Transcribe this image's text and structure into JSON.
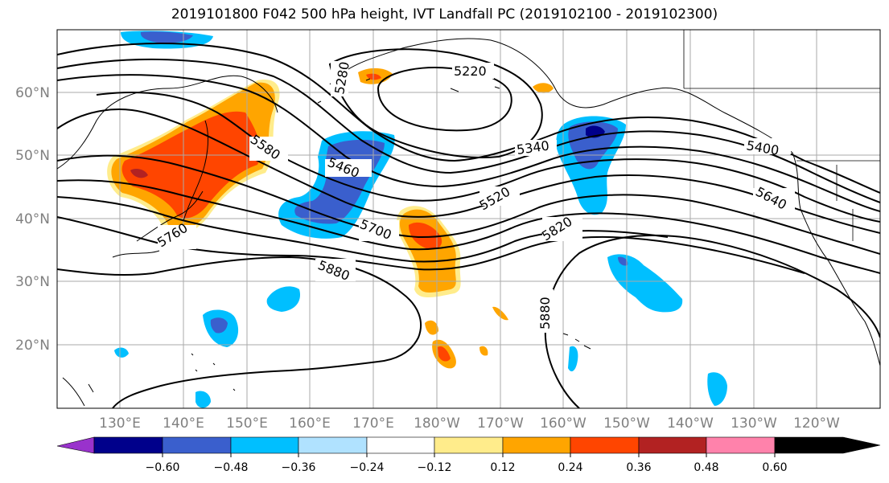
{
  "title": "2019101800 F042 500 hPa height, IVT Landfall PC (2019102100 - 2019102300)",
  "lat_labels": [
    "60°N",
    "50°N",
    "40°N",
    "30°N",
    "20°N"
  ],
  "lon_labels": [
    "130°E",
    "140°E",
    "150°E",
    "160°E",
    "170°E",
    "180°W",
    "170°W",
    "160°W",
    "150°W",
    "140°W",
    "130°W",
    "120°W"
  ],
  "contour_labels": [
    "5220",
    "5280",
    "5340",
    "5400",
    "5460",
    "5520",
    "5580",
    "5640",
    "5700",
    "5760",
    "5820",
    "5880",
    "5880"
  ],
  "colorbar": {
    "ticks": [
      "−0.60",
      "−0.48",
      "−0.36",
      "−0.24",
      "−0.12",
      "0.12",
      "0.24",
      "0.36",
      "0.48",
      "0.60"
    ],
    "colors": [
      "#9932cc",
      "#00008b",
      "#3a5fcd",
      "#00bfff",
      "#b0e2ff",
      "#ffffff",
      "#ffec8b",
      "#ffa500",
      "#ff4500",
      "#b22222",
      "#ff82ab"
    ]
  }
}
